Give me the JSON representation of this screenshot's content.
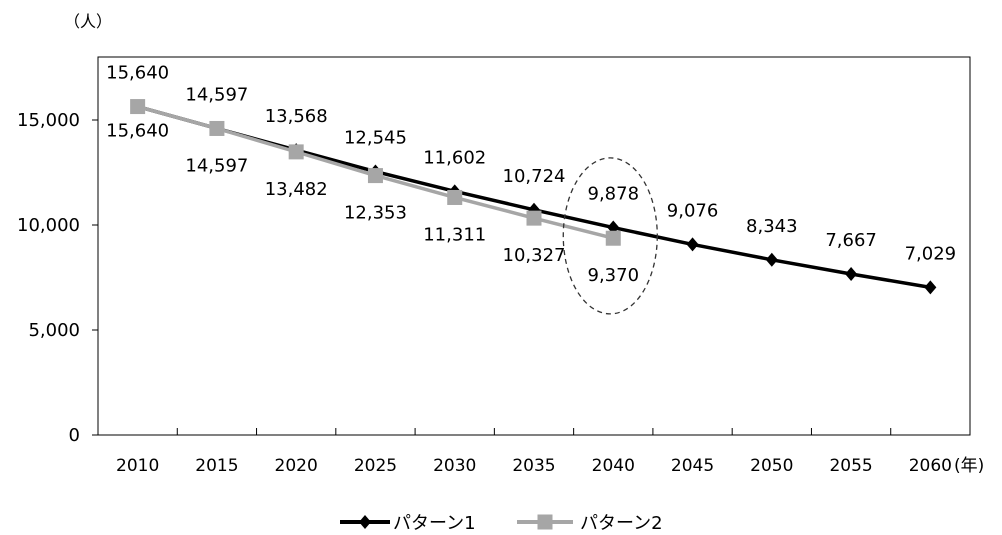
{
  "chart_data": {
    "type": "line",
    "ylabel": "（人）",
    "xlabel": "(年)",
    "categories": [
      "2010",
      "2015",
      "2020",
      "2025",
      "2030",
      "2035",
      "2040",
      "2045",
      "2050",
      "2055",
      "2060"
    ],
    "series": [
      {
        "name": "パターン1",
        "values": [
          15640,
          14597,
          13568,
          12545,
          11602,
          10724,
          9878,
          9076,
          8343,
          7667,
          7029
        ],
        "color": "#000000",
        "marker": "diamond",
        "data_labels": "above"
      },
      {
        "name": "パターン2",
        "values": [
          15640,
          14597,
          13482,
          12353,
          11311,
          10327,
          9370,
          null,
          null,
          null,
          null
        ],
        "color": "#a6a6a6",
        "marker": "square",
        "data_labels": "below"
      }
    ],
    "ylim": [
      0,
      18000
    ],
    "y_ticks": [
      0,
      5000,
      10000,
      15000
    ],
    "grid": false,
    "legend_position": "bottom",
    "highlight_category": "2040"
  }
}
